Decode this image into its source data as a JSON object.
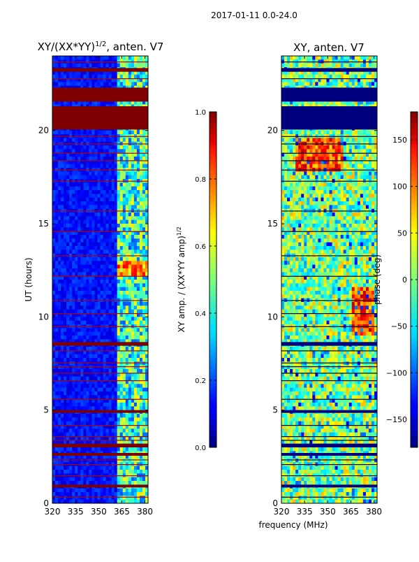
{
  "page": {
    "suptitle": "2017-01-11 0.0-24.0",
    "shared_xlabel": "frequency (MHz)"
  },
  "chart_data": [
    {
      "type": "heatmap",
      "title_main": "XY/(XX*YY)",
      "title_exp": "1/2",
      "title_tail": ", anten. V7",
      "xlabel": "",
      "ylabel": "UT (hours)",
      "xlim": [
        320,
        382
      ],
      "ylim": [
        0,
        24
      ],
      "xticks": [
        320,
        335,
        350,
        365,
        380
      ],
      "yticks": [
        0,
        5,
        10,
        15,
        20
      ],
      "colorbar": {
        "label_main": "XY amp. / (XX*YY amp)",
        "label_exp": "1/2",
        "range": [
          0.0,
          1.0
        ],
        "ticks": [
          "0.0",
          "0.2",
          "0.4",
          "0.6",
          "0.8",
          "1.0"
        ],
        "tick_values": [
          0.0,
          0.2,
          0.4,
          0.6,
          0.8,
          1.0
        ],
        "colormap": "jet"
      },
      "saturated_bands_hours": [
        [
          23.15,
          23.35
        ],
        [
          21.55,
          22.3
        ],
        [
          20.05,
          21.3
        ],
        [
          8.45,
          8.65
        ],
        [
          4.85,
          5.0
        ],
        [
          3.0,
          3.2
        ],
        [
          2.55,
          2.7
        ],
        [
          0.85,
          1.0
        ]
      ],
      "flag_lines_hours": [
        0.35,
        1.5,
        2.1,
        2.35,
        3.4,
        3.6,
        4.2,
        5.6,
        6.6,
        7.0,
        7.35,
        7.55,
        8.2,
        9.5,
        10.2,
        10.9,
        12.2,
        13.3,
        14.6,
        15.7,
        17.3,
        17.9,
        18.4,
        18.8,
        19.3,
        19.7,
        22.8,
        23.7
      ],
      "bright_band_mhz": [
        362,
        382
      ],
      "rfi_event_hours": [
        12.25,
        13.0
      ]
    },
    {
      "type": "heatmap",
      "title": "XY, anten. V7",
      "xlabel": "",
      "ylabel": "",
      "xlim": [
        320,
        382
      ],
      "ylim": [
        0,
        24
      ],
      "xticks": [
        320,
        335,
        350,
        365,
        380
      ],
      "yticks": [
        0,
        5,
        10,
        15,
        20
      ],
      "colorbar": {
        "label": "phase (deg)",
        "range": [
          -180,
          180
        ],
        "ticks": [
          "−150",
          "−100",
          "−50",
          "0",
          "50",
          "100",
          "150"
        ],
        "tick_values": [
          -150,
          -100,
          -50,
          0,
          50,
          100,
          150
        ],
        "colormap": "jet"
      },
      "saturated_bands_hours": [
        [
          23.15,
          23.35
        ],
        [
          21.55,
          22.3
        ],
        [
          20.05,
          21.3
        ],
        [
          8.45,
          8.65
        ],
        [
          4.85,
          5.0
        ],
        [
          3.0,
          3.2
        ],
        [
          2.55,
          2.7
        ],
        [
          0.85,
          1.0
        ]
      ],
      "flag_lines_hours": [
        0.35,
        1.5,
        2.1,
        2.35,
        3.4,
        3.6,
        4.2,
        5.6,
        6.6,
        7.0,
        7.35,
        7.55,
        8.2,
        9.5,
        10.2,
        10.9,
        12.2,
        13.3,
        14.6,
        15.7,
        17.3,
        17.9,
        18.4,
        18.8,
        19.3,
        19.7,
        22.8,
        23.7
      ],
      "warm_regions": [
        {
          "hours": [
            17.8,
            19.5
          ],
          "mhz": [
            330,
            360
          ]
        },
        {
          "hours": [
            9.0,
            11.5
          ],
          "mhz": [
            365,
            380
          ]
        }
      ]
    }
  ]
}
